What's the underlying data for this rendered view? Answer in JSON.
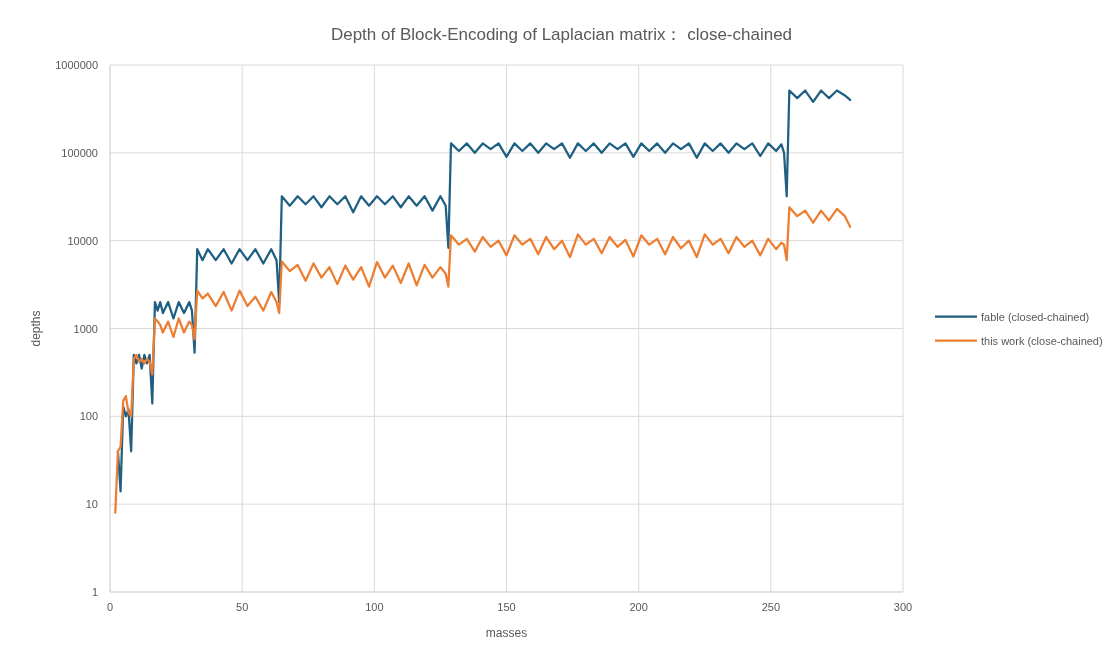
{
  "chart_data": {
    "type": "line",
    "title": "Depth of Block-Encoding of Laplacian matrix： close-chained",
    "xlabel": "masses",
    "ylabel": "depths",
    "x": [
      2,
      3,
      4,
      5,
      6,
      7,
      8,
      9,
      10,
      11,
      12,
      13,
      14,
      15,
      16,
      17,
      18,
      19,
      20,
      22,
      24,
      26,
      28,
      30,
      31,
      32,
      33,
      35,
      37,
      40,
      43,
      46,
      49,
      52,
      55,
      58,
      61,
      63,
      64,
      65,
      68,
      71,
      74,
      77,
      80,
      83,
      86,
      89,
      92,
      95,
      98,
      101,
      104,
      107,
      110,
      113,
      116,
      119,
      122,
      125,
      127,
      128,
      129,
      132,
      135,
      138,
      141,
      144,
      147,
      150,
      153,
      156,
      159,
      162,
      165,
      168,
      171,
      174,
      177,
      180,
      183,
      186,
      189,
      192,
      195,
      198,
      201,
      204,
      207,
      210,
      213,
      216,
      219,
      222,
      225,
      228,
      231,
      234,
      237,
      240,
      243,
      246,
      249,
      252,
      254,
      255,
      256,
      257,
      260,
      263,
      266,
      269,
      272,
      275,
      278,
      280
    ],
    "series": [
      {
        "name": "fable (closed-chained)",
        "color": "#1f5f82",
        "values": [
          null,
          40,
          14,
          130,
          100,
          120,
          40,
          500,
          400,
          500,
          350,
          500,
          400,
          500,
          140,
          2000,
          1600,
          2000,
          1500,
          2000,
          1300,
          2000,
          1500,
          2000,
          1600,
          530,
          8000,
          6000,
          8000,
          6000,
          8000,
          5500,
          8000,
          6000,
          8000,
          5500,
          8000,
          6000,
          2000,
          32000,
          25000,
          32000,
          26000,
          32000,
          24000,
          32000,
          26000,
          32000,
          21000,
          32000,
          25000,
          32000,
          26000,
          32000,
          24000,
          32000,
          25000,
          32000,
          22000,
          32000,
          25000,
          8300,
          128000,
          105000,
          128000,
          100000,
          128000,
          110000,
          128000,
          90000,
          128000,
          105000,
          128000,
          100000,
          128000,
          110000,
          128000,
          88000,
          128000,
          105000,
          128000,
          100000,
          128000,
          110000,
          128000,
          90000,
          128000,
          105000,
          128000,
          100000,
          128000,
          110000,
          128000,
          88000,
          128000,
          105000,
          128000,
          100000,
          128000,
          110000,
          128000,
          92000,
          128000,
          105000,
          125000,
          100000,
          32000,
          512000,
          420000,
          512000,
          380000,
          512000,
          420000,
          512000,
          450000,
          400000
        ]
      },
      {
        "name": "this work (close-chained)",
        "color": "#ed7d31",
        "values": [
          8,
          40,
          45,
          150,
          170,
          110,
          100,
          450,
          500,
          420,
          450,
          400,
          450,
          420,
          300,
          1300,
          1200,
          1100,
          900,
          1200,
          800,
          1300,
          900,
          1200,
          1100,
          750,
          2700,
          2200,
          2500,
          1800,
          2600,
          1600,
          2700,
          1800,
          2300,
          1600,
          2600,
          2000,
          1500,
          5800,
          4500,
          5300,
          3500,
          5500,
          3800,
          5000,
          3200,
          5200,
          3600,
          5000,
          3000,
          5700,
          3800,
          5200,
          3300,
          5500,
          3100,
          5300,
          3800,
          5000,
          4200,
          3000,
          11500,
          9000,
          10500,
          7500,
          11000,
          8500,
          10000,
          6800,
          11500,
          9000,
          10500,
          7000,
          11000,
          8000,
          10000,
          6500,
          11800,
          9000,
          10500,
          7200,
          11000,
          8500,
          10200,
          6600,
          11500,
          9000,
          10500,
          7000,
          11000,
          8200,
          10000,
          6500,
          11800,
          9000,
          10500,
          7200,
          11000,
          8500,
          10000,
          6800,
          10500,
          8000,
          9500,
          9000,
          6000,
          24000,
          19000,
          22000,
          16000,
          22000,
          17000,
          23000,
          19000,
          14400
        ]
      }
    ],
    "log": "y",
    "xlim": [
      0,
      300
    ],
    "xticks": [
      0,
      50,
      100,
      150,
      200,
      250,
      300
    ],
    "ylim": [
      1,
      1000000
    ],
    "yticks": [
      1,
      10,
      100,
      1000,
      10000,
      100000,
      1000000
    ],
    "grid": true,
    "legend": "right",
    "marker": "none",
    "line_style": "solid"
  }
}
